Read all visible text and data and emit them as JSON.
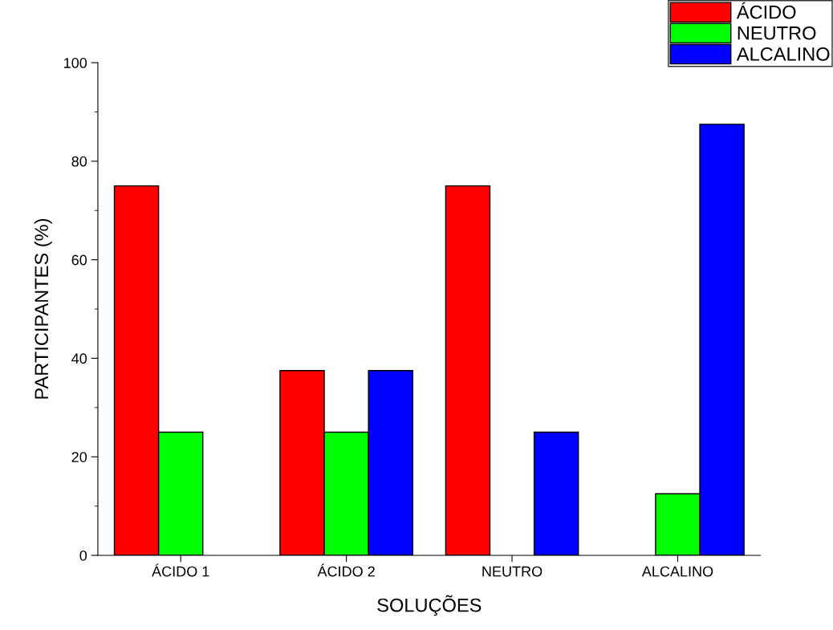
{
  "chart_data": {
    "type": "bar",
    "xlabel": "SOLUÇÕES",
    "ylabel": "PARTICIPANTES (%)",
    "categories": [
      "ÁCIDO 1",
      "ÁCIDO 2",
      "NEUTRO",
      "ALCALINO"
    ],
    "series": [
      {
        "name": "ÁCIDO",
        "color": "#ff0000",
        "values": [
          75,
          37.5,
          75,
          null
        ]
      },
      {
        "name": "NEUTRO",
        "color": "#00ff00",
        "values": [
          25,
          25,
          null,
          12.5
        ]
      },
      {
        "name": "ALCALINO",
        "color": "#0000ff",
        "values": [
          null,
          37.5,
          25,
          87.5
        ]
      }
    ],
    "ylim": [
      0,
      100
    ],
    "yticks": [
      0,
      20,
      40,
      60,
      80,
      100
    ],
    "grid": false,
    "legend": "top right"
  }
}
